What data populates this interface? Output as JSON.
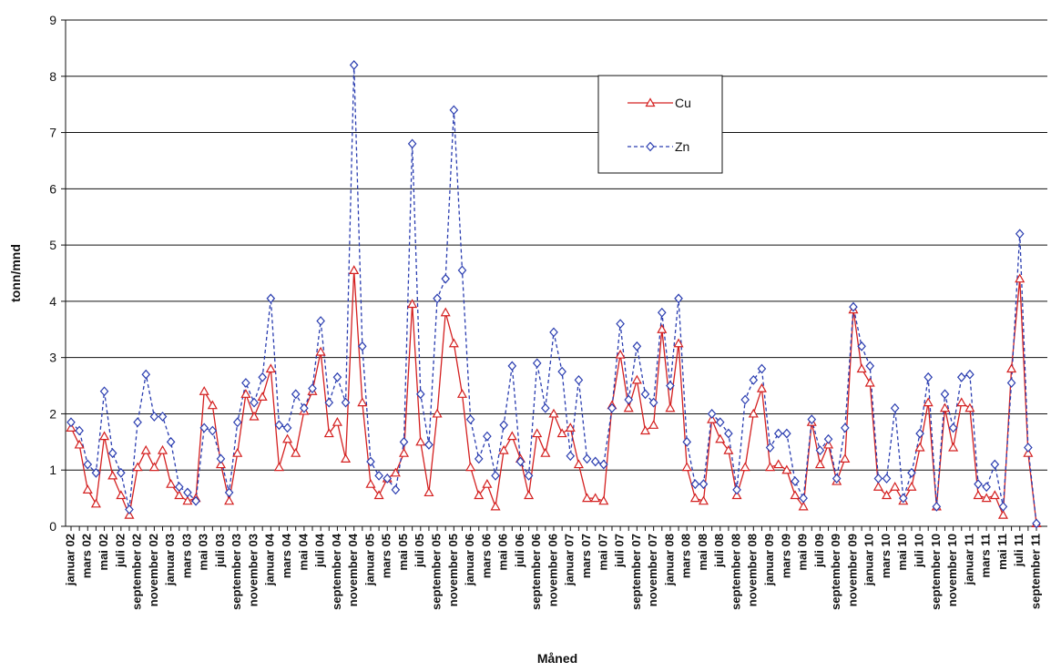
{
  "chart_data": {
    "type": "line",
    "x_label": "Måned",
    "y_label": "tonn/mnd",
    "categories": [
      "januar 02",
      null,
      "mars 02",
      null,
      "mai 02",
      null,
      "juli 02",
      null,
      "september 02",
      null,
      "november 02",
      null,
      "januar 03",
      null,
      "mars 03",
      null,
      "mai 03",
      null,
      "juli 03",
      null,
      "september 03",
      null,
      "november 03",
      null,
      "januar 04",
      null,
      "mars 04",
      null,
      "mai 04",
      null,
      "juli 04",
      null,
      "september 04",
      null,
      "november 04",
      null,
      "januar 05",
      null,
      "mars 05",
      null,
      "mai 05",
      null,
      "juli 05",
      null,
      "september 05",
      null,
      "november 05",
      null,
      "januar 06",
      null,
      "mars 06",
      null,
      "mai 06",
      null,
      "juli 06",
      null,
      "september 06",
      null,
      "november 06",
      null,
      "januar 07",
      null,
      "mars 07",
      null,
      "mai 07",
      null,
      "juli 07",
      null,
      "september 07",
      null,
      "november 07",
      null,
      "januar 08",
      null,
      "mars 08",
      null,
      "mai 08",
      null,
      "juli 08",
      null,
      "september 08",
      null,
      "november 08",
      null,
      "januar 09",
      null,
      "mars 09",
      null,
      "mai 09",
      null,
      "juli 09",
      null,
      "september 09",
      null,
      "november 09",
      null,
      "januar 10",
      null,
      "mars 10",
      null,
      "mai 10",
      null,
      "juli 10",
      null,
      "september 10",
      null,
      "november 10",
      null,
      "januar 11",
      null,
      "mars 11",
      null,
      "mai 11",
      null,
      "juli 11",
      null,
      "september 11"
    ],
    "series": [
      {
        "name": "Cu",
        "color": "#d42020",
        "marker": "triangle",
        "line_style": "solid",
        "values": [
          1.75,
          1.45,
          0.65,
          0.4,
          1.6,
          0.9,
          0.55,
          0.2,
          1.05,
          1.35,
          1.05,
          1.35,
          0.75,
          0.55,
          0.45,
          0.5,
          2.4,
          2.15,
          1.1,
          0.45,
          1.3,
          2.35,
          1.95,
          2.3,
          2.8,
          1.05,
          1.55,
          1.3,
          2.05,
          2.4,
          3.1,
          1.65,
          1.85,
          1.2,
          4.55,
          2.2,
          0.75,
          0.55,
          0.85,
          0.95,
          1.3,
          3.95,
          1.5,
          0.6,
          2.0,
          3.8,
          3.25,
          2.35,
          1.05,
          0.55,
          0.75,
          0.35,
          1.35,
          1.6,
          1.2,
          0.55,
          1.65,
          1.3,
          2.0,
          1.65,
          1.75,
          1.1,
          0.5,
          0.5,
          0.45,
          2.15,
          3.05,
          2.1,
          2.6,
          1.7,
          1.8,
          3.5,
          2.1,
          3.25,
          1.05,
          0.5,
          0.45,
          1.9,
          1.55,
          1.35,
          0.55,
          1.05,
          2.0,
          2.45,
          1.05,
          1.1,
          1.0,
          0.55,
          0.35,
          1.85,
          1.1,
          1.45,
          0.8,
          1.2,
          3.85,
          2.8,
          2.55,
          0.7,
          0.55,
          0.7,
          0.45,
          0.7,
          1.4,
          2.2,
          0.35,
          2.1,
          1.4,
          2.2,
          2.1,
          0.55,
          0.5,
          0.55,
          0.2,
          2.8,
          4.4,
          1.3,
          0.05
        ]
      },
      {
        "name": "Zn",
        "color": "#2a3db0",
        "marker": "diamond",
        "line_style": "dashed",
        "values": [
          1.85,
          1.7,
          1.1,
          0.95,
          2.4,
          1.3,
          0.95,
          0.3,
          1.85,
          2.7,
          1.95,
          1.95,
          1.5,
          0.7,
          0.6,
          0.45,
          1.75,
          1.7,
          1.2,
          0.6,
          1.85,
          2.55,
          2.2,
          2.65,
          4.05,
          1.8,
          1.75,
          2.35,
          2.1,
          2.45,
          3.65,
          2.2,
          2.65,
          2.2,
          8.2,
          3.2,
          1.15,
          0.9,
          0.85,
          0.65,
          1.5,
          6.8,
          2.35,
          1.45,
          4.05,
          4.4,
          7.4,
          4.55,
          1.9,
          1.2,
          1.6,
          0.9,
          1.8,
          2.85,
          1.15,
          0.9,
          2.9,
          2.1,
          3.45,
          2.75,
          1.25,
          2.6,
          1.2,
          1.15,
          1.1,
          2.1,
          3.6,
          2.25,
          3.2,
          2.35,
          2.2,
          3.8,
          2.5,
          4.05,
          1.5,
          0.75,
          0.75,
          2.0,
          1.85,
          1.65,
          0.65,
          2.25,
          2.6,
          2.8,
          1.4,
          1.65,
          1.65,
          0.8,
          0.5,
          1.9,
          1.35,
          1.55,
          0.85,
          1.75,
          3.9,
          3.2,
          2.85,
          0.85,
          0.85,
          2.1,
          0.5,
          0.95,
          1.65,
          2.65,
          0.35,
          2.35,
          1.75,
          2.65,
          2.7,
          0.75,
          0.7,
          1.1,
          0.35,
          2.55,
          5.2,
          1.4,
          0.05
        ]
      }
    ],
    "ylim": [
      0,
      9
    ],
    "yticks": [
      0,
      1,
      2,
      3,
      4,
      5,
      6,
      7,
      8,
      9
    ],
    "grid": true,
    "legend": "upper-center"
  }
}
